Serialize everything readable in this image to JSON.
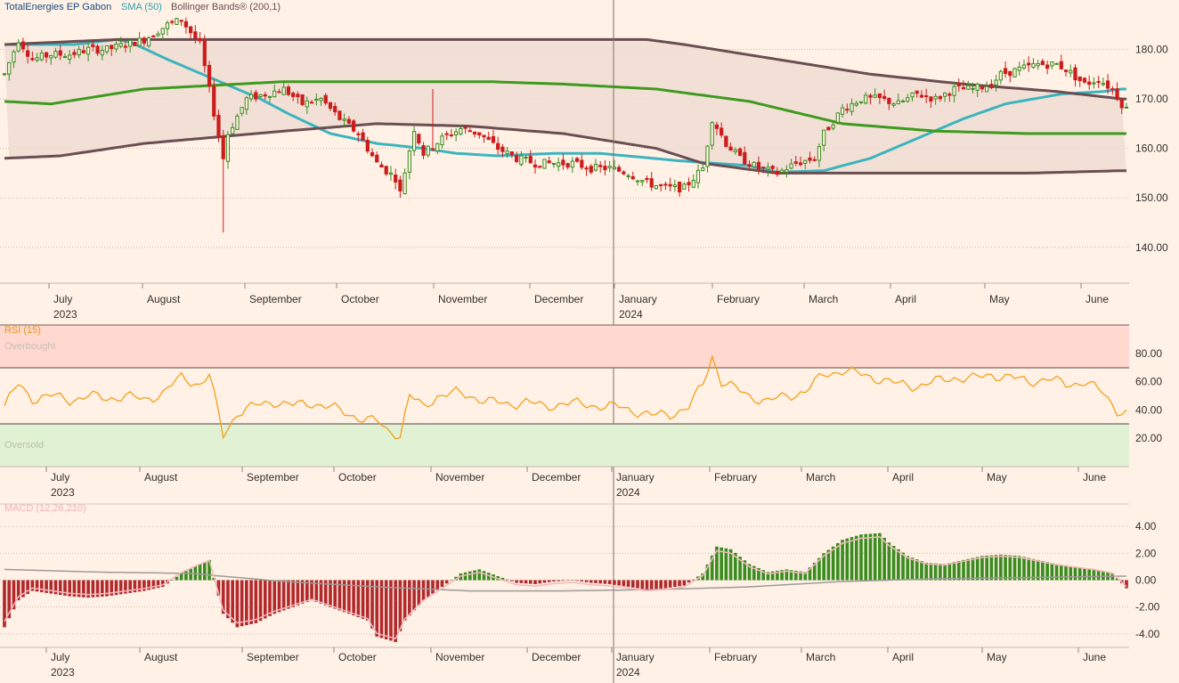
{
  "chart_data": {
    "type": "candlestick",
    "instrument": "TotalEnergies EP Gabon",
    "x_axis": {
      "months": [
        "July",
        "August",
        "September",
        "October",
        "November",
        "December",
        "January",
        "February",
        "March",
        "April",
        "May",
        "June"
      ],
      "years": [
        "2023",
        "2024"
      ],
      "range": [
        "2023-06",
        "2024-06"
      ]
    },
    "price_panel": {
      "legend": [
        "TotalEnergies EP Gabon",
        "SMA (50)",
        "Bollinger Bands® (200,1)"
      ],
      "y_ticks": [
        "180.00",
        "170.00",
        "160.00",
        "150.00",
        "140.00"
      ],
      "y_range": [
        136,
        190
      ],
      "series": [
        {
          "name": "SMA (50)",
          "color": "#3cb4be",
          "points": [
            [
              0,
              181
            ],
            [
              8,
              181
            ],
            [
              15,
              181
            ],
            [
              24,
              182
            ],
            [
              27,
              181.5
            ],
            [
              35,
              178
            ],
            [
              45,
              174
            ],
            [
              55,
              170
            ],
            [
              61,
              167
            ],
            [
              70,
              163
            ],
            [
              80,
              161
            ],
            [
              90,
              160
            ],
            [
              97,
              159
            ],
            [
              106,
              158.5
            ],
            [
              118,
              159
            ],
            [
              128,
              159
            ],
            [
              145,
              157.5
            ],
            [
              160,
              156.5
            ],
            [
              166,
              155.2
            ],
            [
              176,
              155.5
            ],
            [
              186,
              158
            ],
            [
              196,
              162
            ],
            [
              206,
              166
            ],
            [
              215,
              169
            ],
            [
              227,
              171
            ],
            [
              236,
              171.5
            ],
            [
              240,
              172
            ]
          ]
        },
        {
          "name": "Bollinger upper",
          "color": "#6a4e52",
          "points": [
            [
              0,
              181
            ],
            [
              24,
              182
            ],
            [
              40,
              182
            ],
            [
              80,
              182
            ],
            [
              108,
              182
            ],
            [
              138,
              182
            ],
            [
              146,
              181
            ],
            [
              166,
              178
            ],
            [
              186,
              175
            ],
            [
              206,
              173
            ],
            [
              226,
              171.5
            ],
            [
              240,
              170
            ]
          ]
        },
        {
          "name": "Bollinger middle",
          "color": "#3e9a1e",
          "points": [
            [
              0,
              169.5
            ],
            [
              10,
              169
            ],
            [
              30,
              172
            ],
            [
              60,
              173.5
            ],
            [
              104,
              173.5
            ],
            [
              120,
              173
            ],
            [
              140,
              172
            ],
            [
              160,
              169.5
            ],
            [
              180,
              165
            ],
            [
              200,
              163.5
            ],
            [
              220,
              163
            ],
            [
              240,
              163
            ]
          ]
        },
        {
          "name": "Bollinger lower",
          "color": "#6a4e52",
          "points": [
            [
              0,
              158
            ],
            [
              12,
              158.5
            ],
            [
              30,
              161
            ],
            [
              60,
              163.5
            ],
            [
              80,
              165
            ],
            [
              100,
              164.5
            ],
            [
              120,
              163
            ],
            [
              140,
              160
            ],
            [
              150,
              157
            ],
            [
              166,
              155
            ],
            [
              186,
              155
            ],
            [
              220,
              155
            ],
            [
              240,
              155.5
            ]
          ]
        }
      ],
      "ohlc_path": [
        [
          0,
          175
        ],
        [
          3,
          182
        ],
        [
          6,
          178
        ],
        [
          10,
          179
        ],
        [
          14,
          179
        ],
        [
          18,
          180
        ],
        [
          22,
          180
        ],
        [
          26,
          181
        ],
        [
          30,
          182
        ],
        [
          35,
          185
        ],
        [
          38,
          186
        ],
        [
          42,
          181
        ],
        [
          47,
          158
        ],
        [
          48,
          163
        ],
        [
          52,
          170
        ],
        [
          56,
          171
        ],
        [
          60,
          172
        ],
        [
          64,
          169
        ],
        [
          68,
          170
        ],
        [
          72,
          166
        ],
        [
          76,
          163
        ],
        [
          80,
          157
        ],
        [
          84,
          154
        ],
        [
          85,
          151
        ],
        [
          88,
          164
        ],
        [
          90,
          159
        ],
        [
          94,
          162
        ],
        [
          98,
          164
        ],
        [
          102,
          163
        ],
        [
          106,
          160
        ],
        [
          110,
          158
        ],
        [
          114,
          157
        ],
        [
          118,
          157
        ],
        [
          122,
          157
        ],
        [
          126,
          156
        ],
        [
          130,
          156
        ],
        [
          134,
          155
        ],
        [
          138,
          153
        ],
        [
          142,
          152
        ],
        [
          146,
          152
        ],
        [
          150,
          156
        ],
        [
          152,
          166
        ],
        [
          155,
          161
        ],
        [
          158,
          158
        ],
        [
          162,
          156
        ],
        [
          166,
          155
        ],
        [
          170,
          157
        ],
        [
          174,
          158
        ],
        [
          176,
          163
        ],
        [
          180,
          168
        ],
        [
          184,
          170
        ],
        [
          188,
          170
        ],
        [
          192,
          169
        ],
        [
          196,
          171
        ],
        [
          200,
          170
        ],
        [
          204,
          172
        ],
        [
          208,
          172
        ],
        [
          212,
          173
        ],
        [
          214,
          175
        ],
        [
          218,
          176
        ],
        [
          222,
          177
        ],
        [
          226,
          177
        ],
        [
          228,
          176
        ],
        [
          232,
          173
        ],
        [
          235,
          174
        ],
        [
          238,
          172
        ],
        [
          240,
          169
        ],
        [
          241,
          168
        ]
      ]
    },
    "rsi_panel": {
      "label": "RSI (15)",
      "overbought_label": "Overbought",
      "oversold_label": "Oversold",
      "y_ticks": [
        "80.00",
        "60.00",
        "40.00",
        "20.00"
      ],
      "y_range": [
        0,
        100
      ],
      "bands": {
        "overbought": 70,
        "oversold": 30
      },
      "color": "#f4a01c",
      "values": [
        [
          0,
          43
        ],
        [
          3,
          58
        ],
        [
          6,
          48
        ],
        [
          10,
          50
        ],
        [
          14,
          47
        ],
        [
          18,
          50
        ],
        [
          22,
          48
        ],
        [
          26,
          50
        ],
        [
          30,
          47
        ],
        [
          34,
          52
        ],
        [
          38,
          63
        ],
        [
          42,
          58
        ],
        [
          44,
          65
        ],
        [
          47,
          22
        ],
        [
          50,
          38
        ],
        [
          54,
          43
        ],
        [
          58,
          46
        ],
        [
          62,
          43
        ],
        [
          66,
          45
        ],
        [
          70,
          42
        ],
        [
          74,
          37
        ],
        [
          78,
          33
        ],
        [
          80,
          32
        ],
        [
          82,
          26
        ],
        [
          84,
          24
        ],
        [
          85,
          22
        ],
        [
          87,
          50
        ],
        [
          90,
          42
        ],
        [
          93,
          50
        ],
        [
          97,
          52
        ],
        [
          100,
          50
        ],
        [
          104,
          46
        ],
        [
          108,
          44
        ],
        [
          112,
          46
        ],
        [
          116,
          42
        ],
        [
          120,
          45
        ],
        [
          124,
          44
        ],
        [
          128,
          43
        ],
        [
          132,
          42
        ],
        [
          136,
          39
        ],
        [
          139,
          36
        ],
        [
          143,
          37
        ],
        [
          147,
          42
        ],
        [
          150,
          58
        ],
        [
          152,
          78
        ],
        [
          154,
          60
        ],
        [
          157,
          55
        ],
        [
          160,
          50
        ],
        [
          164,
          46
        ],
        [
          168,
          50
        ],
        [
          172,
          53
        ],
        [
          176,
          65
        ],
        [
          180,
          68
        ],
        [
          184,
          65
        ],
        [
          188,
          62
        ],
        [
          192,
          58
        ],
        [
          196,
          57
        ],
        [
          200,
          60
        ],
        [
          204,
          63
        ],
        [
          208,
          62
        ],
        [
          212,
          65
        ],
        [
          216,
          63
        ],
        [
          220,
          60
        ],
        [
          224,
          62
        ],
        [
          228,
          58
        ],
        [
          232,
          60
        ],
        [
          236,
          52
        ],
        [
          239,
          40
        ],
        [
          241,
          38
        ]
      ]
    },
    "macd_panel": {
      "label": "MACD (12,26,210)",
      "y_ticks": [
        "4.00",
        "2.00",
        "0.00",
        "-2.00",
        "-4.00"
      ],
      "y_range": [
        -5,
        5
      ],
      "histogram_values": [
        [
          0,
          -3.5
        ],
        [
          3,
          -1.5
        ],
        [
          6,
          -0.8
        ],
        [
          10,
          -1
        ],
        [
          14,
          -1.2
        ],
        [
          18,
          -1.3
        ],
        [
          22,
          -1.2
        ],
        [
          26,
          -1
        ],
        [
          30,
          -0.8
        ],
        [
          34,
          -0.5
        ],
        [
          38,
          0.5
        ],
        [
          42,
          1.2
        ],
        [
          44,
          1.5
        ],
        [
          47,
          -2.5
        ],
        [
          50,
          -3.5
        ],
        [
          54,
          -3.2
        ],
        [
          58,
          -2.5
        ],
        [
          62,
          -2
        ],
        [
          66,
          -1.5
        ],
        [
          70,
          -2
        ],
        [
          74,
          -2.5
        ],
        [
          78,
          -3
        ],
        [
          80,
          -4.2
        ],
        [
          84,
          -4.6
        ],
        [
          86,
          -3
        ],
        [
          90,
          -1.5
        ],
        [
          94,
          -0.5
        ],
        [
          98,
          0.5
        ],
        [
          102,
          0.8
        ],
        [
          106,
          0.3
        ],
        [
          110,
          -0.2
        ],
        [
          114,
          -0.3
        ],
        [
          118,
          -0.1
        ],
        [
          122,
          0
        ],
        [
          126,
          -0.2
        ],
        [
          130,
          -0.3
        ],
        [
          134,
          -0.5
        ],
        [
          138,
          -0.7
        ],
        [
          142,
          -0.6
        ],
        [
          146,
          -0.4
        ],
        [
          150,
          0.5
        ],
        [
          153,
          2.5
        ],
        [
          156,
          2.3
        ],
        [
          160,
          1.2
        ],
        [
          164,
          0.6
        ],
        [
          168,
          0.8
        ],
        [
          172,
          0.6
        ],
        [
          176,
          2
        ],
        [
          180,
          3
        ],
        [
          184,
          3.4
        ],
        [
          188,
          3.5
        ],
        [
          190,
          2.8
        ],
        [
          194,
          1.8
        ],
        [
          198,
          1.3
        ],
        [
          202,
          1.2
        ],
        [
          206,
          1.5
        ],
        [
          210,
          1.8
        ],
        [
          214,
          1.9
        ],
        [
          218,
          1.8
        ],
        [
          222,
          1.5
        ],
        [
          226,
          1.2
        ],
        [
          230,
          1
        ],
        [
          234,
          0.8
        ],
        [
          238,
          0.5
        ],
        [
          241,
          -0.6
        ]
      ],
      "macd_line_color": "#f2b8be",
      "signal_line_color": "#9e9a98",
      "signal_values": [
        [
          0,
          0.8
        ],
        [
          20,
          0.6
        ],
        [
          40,
          0.5
        ],
        [
          60,
          -0.1
        ],
        [
          80,
          -0.5
        ],
        [
          100,
          -0.8
        ],
        [
          120,
          -0.8
        ],
        [
          140,
          -0.7
        ],
        [
          160,
          -0.5
        ],
        [
          180,
          -0.1
        ],
        [
          200,
          0.1
        ],
        [
          220,
          0.2
        ],
        [
          241,
          0.3
        ]
      ]
    }
  },
  "colors": {
    "background": "#fff1e5",
    "gridline": "#c9bbb0",
    "up_candle": "#3a8c1f",
    "down_candle": "#cc1d1d",
    "band_fill": "#f0ddd3",
    "overbought_fill": "#ffd8cf",
    "oversold_fill": "#e1f1d3",
    "histogram_up": "#3a8c1f",
    "histogram_down": "#b2292c"
  }
}
